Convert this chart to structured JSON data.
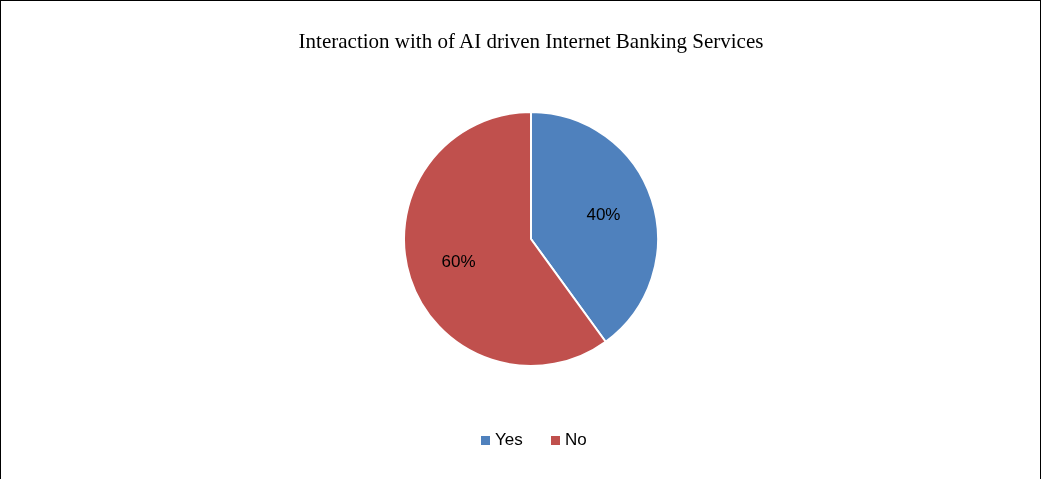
{
  "chart_data": {
    "type": "pie",
    "title": "Interaction with of AI driven Internet Banking Services",
    "categories": [
      "Yes",
      "No"
    ],
    "values": [
      40,
      60
    ],
    "colors": [
      "#4f81bd",
      "#c0504d"
    ],
    "value_labels": [
      "40%",
      "60%"
    ],
    "legend": "bottom"
  }
}
